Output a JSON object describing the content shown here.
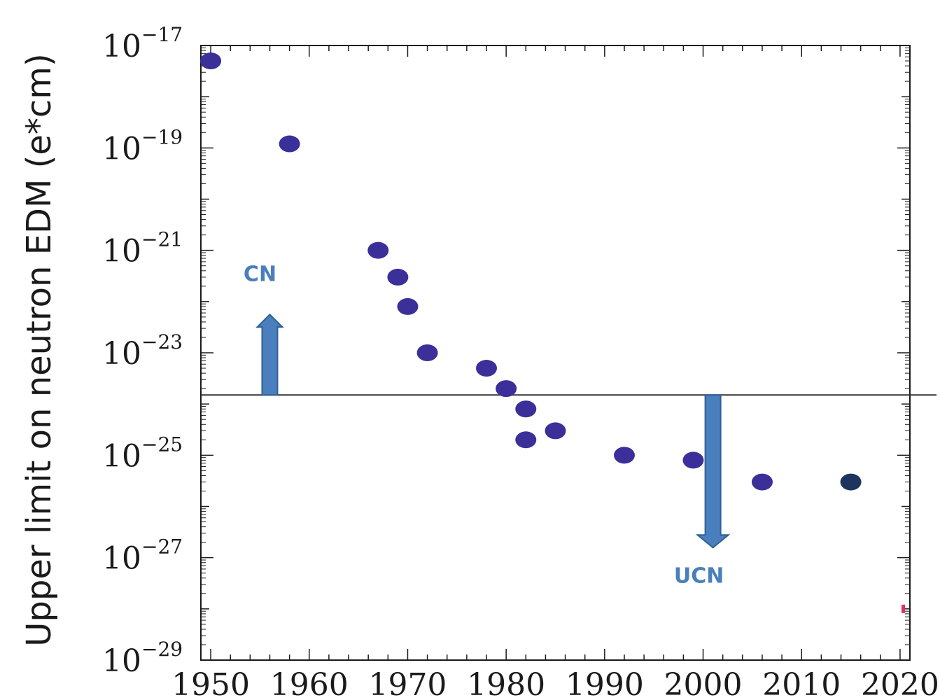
{
  "chart_data": {
    "type": "scatter",
    "ylabel": "Upper limit on neutron EDM (e*cm)",
    "xlabel": "",
    "title": "",
    "xlim": [
      1949,
      2021
    ],
    "ylim": [
      1e-29,
      1e-17
    ],
    "y_scale": "log",
    "x_ticks": [
      1950,
      1960,
      1970,
      1980,
      1990,
      2000,
      2010,
      2020
    ],
    "y_ticks": [
      {
        "value": 1e-17,
        "base": "10",
        "exp": "−17"
      },
      {
        "value": 1e-19,
        "base": "10",
        "exp": "−19"
      },
      {
        "value": 1e-21,
        "base": "10",
        "exp": "−21"
      },
      {
        "value": 1e-23,
        "base": "10",
        "exp": "−23"
      },
      {
        "value": 1e-25,
        "base": "10",
        "exp": "−25"
      },
      {
        "value": 1e-27,
        "base": "10",
        "exp": "−27"
      },
      {
        "value": 1e-29,
        "base": "10",
        "exp": "−29"
      }
    ],
    "points": [
      {
        "x": 1950,
        "y": 5e-18
      },
      {
        "x": 1958,
        "y": 1.2e-19
      },
      {
        "x": 1967,
        "y": 1e-21
      },
      {
        "x": 1969,
        "y": 3e-22
      },
      {
        "x": 1970,
        "y": 8e-23
      },
      {
        "x": 1972,
        "y": 1e-23
      },
      {
        "x": 1978,
        "y": 5e-24
      },
      {
        "x": 1980,
        "y": 2e-24
      },
      {
        "x": 1982,
        "y": 8e-25
      },
      {
        "x": 1982,
        "y": 2e-25
      },
      {
        "x": 1985,
        "y": 3e-25
      },
      {
        "x": 1992,
        "y": 1e-25
      },
      {
        "x": 1999,
        "y": 8e-26
      },
      {
        "x": 2006,
        "y": 3e-26
      },
      {
        "x": 2015,
        "y": 3e-26,
        "dark": true
      }
    ],
    "threshold_y": 1.5e-24,
    "annotations": {
      "cn": {
        "label": "CN",
        "x": 1956,
        "direction": "up"
      },
      "ucn": {
        "label": "UCN",
        "x": 2001,
        "direction": "down"
      }
    },
    "colors": {
      "point": "#3b2f9a",
      "point_dark": "#1f3560",
      "arrow": "#4a7fbd",
      "arrow_stroke": "#2f5f96",
      "annotation_text": "#4a7fbd",
      "line": "#333333",
      "axis": "#1a1a1a",
      "marker_edge": "#e03060"
    }
  }
}
